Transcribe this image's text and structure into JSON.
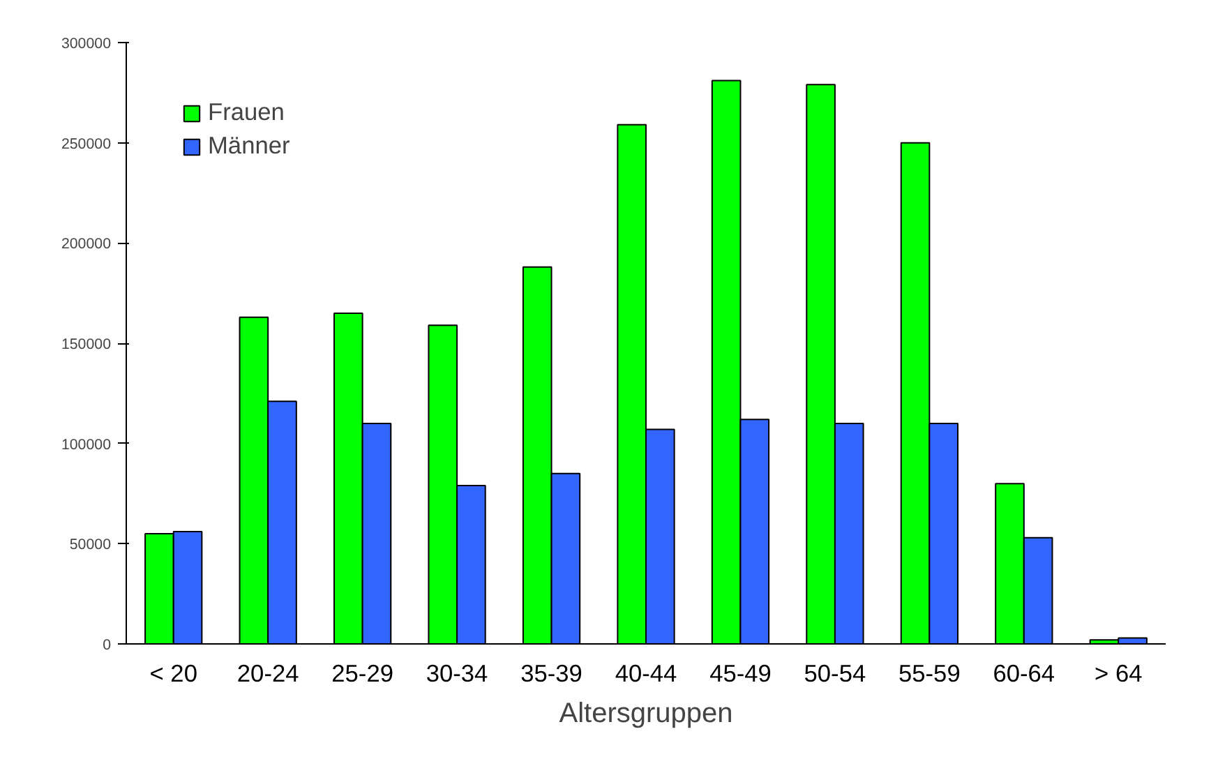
{
  "chart_data": {
    "type": "bar",
    "xlabel": "Altersgruppen",
    "categories": [
      "< 20",
      "20-24",
      "25-29",
      "30-34",
      "35-39",
      "40-44",
      "45-49",
      "50-54",
      "55-59",
      "60-64",
      "> 64"
    ],
    "series": [
      {
        "name": "Frauen",
        "color": "#00ff00",
        "values": [
          55000,
          163000,
          165000,
          159000,
          188000,
          259000,
          281000,
          279000,
          250000,
          80000,
          2000
        ]
      },
      {
        "name": "Männer",
        "color": "#3366ff",
        "values": [
          56000,
          121000,
          110000,
          79000,
          85000,
          107000,
          112000,
          110000,
          110000,
          53000,
          3000
        ]
      }
    ],
    "ylim": [
      0,
      300000
    ],
    "yticks": [
      0,
      50000,
      100000,
      150000,
      200000,
      250000,
      300000
    ],
    "grid": false,
    "legend": "top left"
  }
}
